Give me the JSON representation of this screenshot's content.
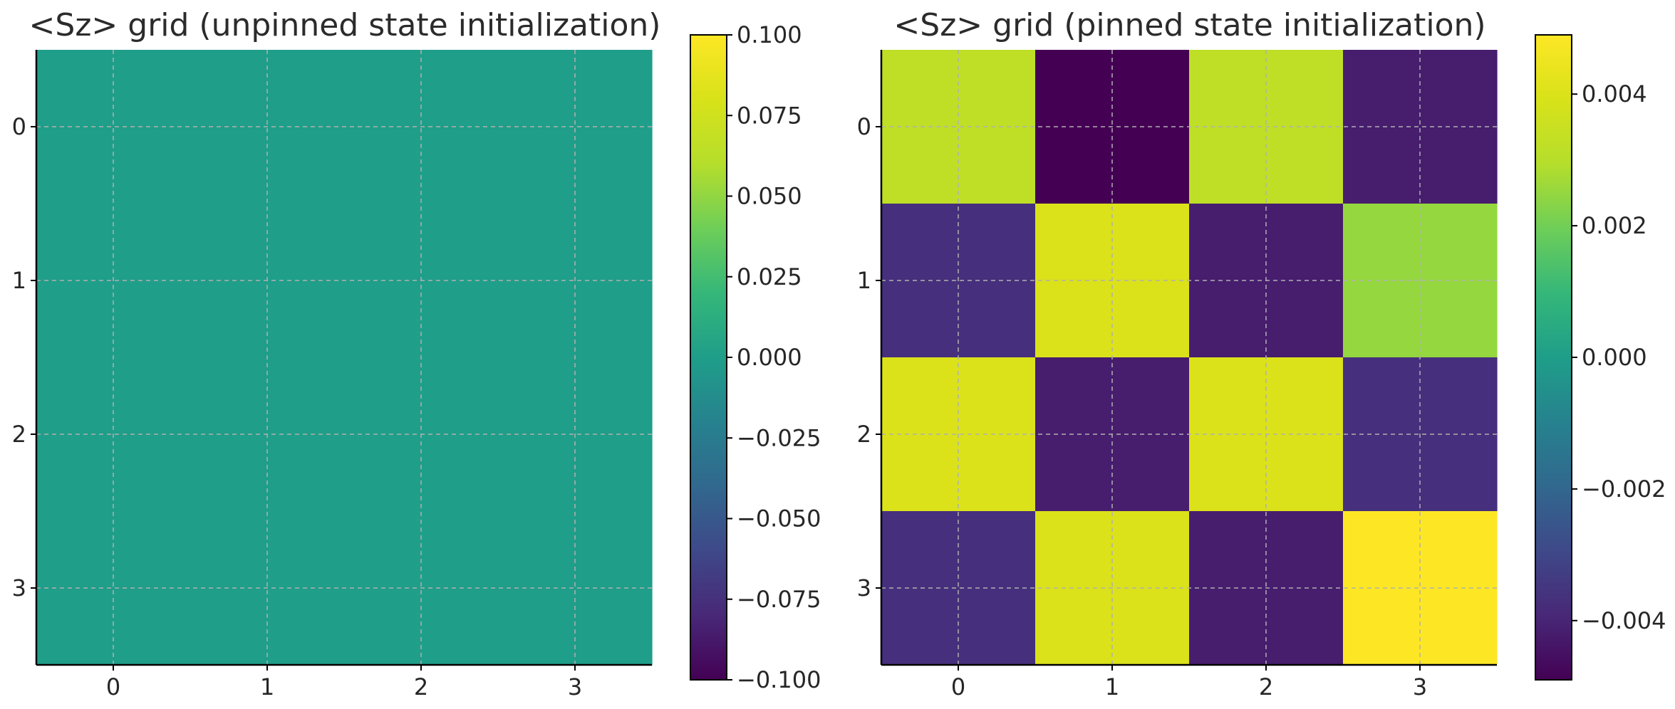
{
  "chart_data": [
    {
      "type": "heatmap",
      "title": "<Sz> grid (unpinned state initialization)",
      "xlabel": "",
      "ylabel": "",
      "x_ticks": [
        "0",
        "1",
        "2",
        "3"
      ],
      "y_ticks": [
        "0",
        "1",
        "2",
        "3"
      ],
      "grid": true,
      "colormap": "viridis",
      "values": [
        [
          0.0,
          0.0,
          0.0,
          0.0
        ],
        [
          0.0,
          0.0,
          0.0,
          0.0
        ],
        [
          0.0,
          0.0,
          0.0,
          0.0
        ],
        [
          0.0,
          0.0,
          0.0,
          0.0
        ]
      ],
      "colorbar": {
        "range": [
          -0.1,
          0.1
        ],
        "ticks": [
          0.1,
          0.075,
          0.05,
          0.025,
          0.0,
          -0.025,
          -0.05,
          -0.075,
          -0.1
        ],
        "tick_labels": [
          "0.100",
          "0.075",
          "0.050",
          "0.025",
          "0.000",
          "−0.025",
          "−0.050",
          "−0.075",
          "−0.100"
        ]
      }
    },
    {
      "type": "heatmap",
      "title": "<Sz> grid (pinned state initialization)",
      "xlabel": "",
      "ylabel": "",
      "x_ticks": [
        "0",
        "1",
        "2",
        "3"
      ],
      "y_ticks": [
        "0",
        "1",
        "2",
        "3"
      ],
      "grid": true,
      "colormap": "viridis",
      "values": [
        [
          0.0032,
          -0.0049,
          0.0032,
          -0.0042
        ],
        [
          -0.0037,
          0.004,
          -0.0042,
          0.0025
        ],
        [
          0.004,
          -0.0042,
          0.004,
          -0.0037
        ],
        [
          -0.0037,
          0.004,
          -0.0042,
          0.0049
        ]
      ],
      "colorbar": {
        "range": [
          -0.0049,
          0.0049
        ],
        "ticks": [
          0.004,
          0.002,
          0.0,
          -0.002,
          -0.004
        ],
        "tick_labels": [
          "0.004",
          "0.002",
          "0.000",
          "−0.002",
          "−0.004"
        ]
      }
    }
  ]
}
